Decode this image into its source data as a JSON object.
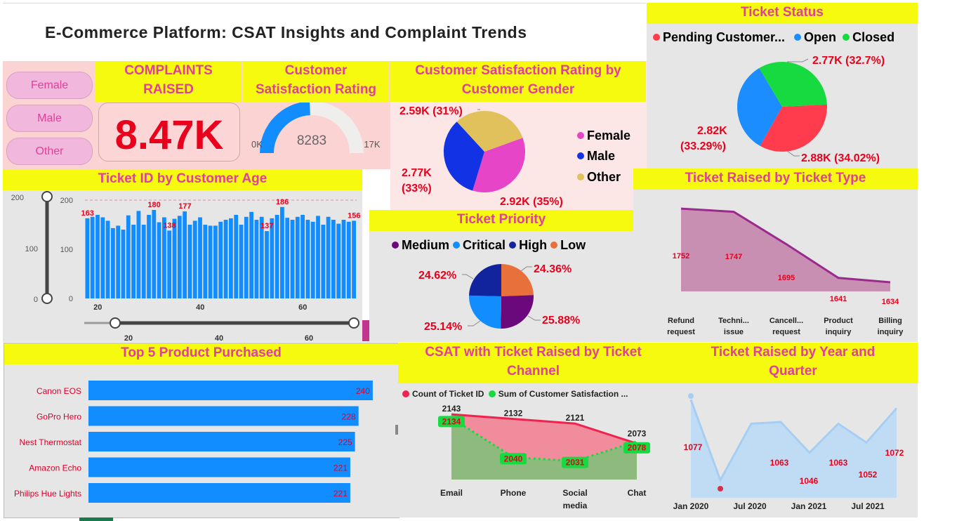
{
  "header": {
    "title": "E-Commerce Platform: CSAT Insights and Complaint Trends"
  },
  "gender_slicer": {
    "items": [
      "Female",
      "Male",
      "Other"
    ]
  },
  "complaints": {
    "title_line1": "COMPLAINTS",
    "title_line2": "RAISED",
    "value": "8.47K"
  },
  "csat_gauge": {
    "title_line1": "Customer",
    "title_line2": "Satisfaction Rating",
    "value": "8283",
    "min": "0K",
    "max": "17K",
    "fraction": 0.487
  },
  "colors": {
    "yellow": "#f5fa0e",
    "magenta_title": "#e0409a",
    "red_value": "#e8001c",
    "blue_bar": "#118dff"
  },
  "gender_pie": {
    "title_line1": "Customer Satisfaction Rating by",
    "title_line2": "Customer Gender",
    "legend": [
      "Female",
      "Male",
      "Other"
    ],
    "labels": [
      "2.92K (35%)",
      "2.77K",
      "(33%)",
      "2.59K (31%)"
    ]
  },
  "age_chart": {
    "title": "Ticket ID by Customer Age",
    "slider_ticks": [
      "200",
      "100",
      "0"
    ],
    "h_slider_ticks": [
      "20",
      "40",
      "60"
    ]
  },
  "ticket_status": {
    "title": "Ticket Status",
    "legend": [
      "Pending Customer...",
      "Open",
      "Closed"
    ],
    "labels": [
      "2.77K (32.7%)",
      "2.82K",
      "(33.29%)",
      "2.88K (34.02%)"
    ]
  },
  "ticket_priority": {
    "title": "Ticket Priority",
    "legend": [
      "Medium",
      "Critical",
      "High",
      "Low"
    ],
    "labels": [
      "24.36%",
      "25.88%",
      "25.14%",
      "24.62%"
    ]
  },
  "ticket_type": {
    "title": "Ticket Raised by Ticket Type",
    "categories": [
      [
        "Refund",
        "request"
      ],
      [
        "Techni...",
        "issue"
      ],
      [
        "Cancell...",
        "request"
      ],
      [
        "Product",
        "inquiry"
      ],
      [
        "Billing",
        "inquiry"
      ]
    ]
  },
  "top_products": {
    "title": "Top 5 Product Purchased"
  },
  "csat_channel": {
    "title_line1": "CSAT with Ticket Raised by Ticket",
    "title_line2": "Channel",
    "legend": [
      "Count of Ticket ID",
      "Sum of Customer Satisfaction ..."
    ],
    "categories": [
      [
        "Email"
      ],
      [
        "Phone"
      ],
      [
        "Social",
        "media"
      ],
      [
        "Chat"
      ]
    ]
  },
  "year_quarter": {
    "title_line1": "Ticket Raised by Year and",
    "title_line2": "Quarter",
    "x_ticks": [
      "Jan 2020",
      "Jul 2020",
      "Jan 2021",
      "Jul 2021"
    ]
  },
  "chart_data": [
    {
      "type": "bar",
      "title": "Ticket ID by Customer Age",
      "x": [
        18,
        19,
        20,
        21,
        22,
        23,
        24,
        25,
        26,
        27,
        28,
        29,
        30,
        31,
        32,
        33,
        34,
        35,
        36,
        37,
        38,
        39,
        40,
        41,
        42,
        43,
        44,
        45,
        46,
        47,
        48,
        49,
        50,
        51,
        52,
        53,
        54,
        55,
        56,
        57,
        58,
        59,
        60,
        61,
        62,
        63,
        64,
        65,
        66,
        67,
        68,
        69,
        70
      ],
      "values": [
        163,
        166,
        170,
        165,
        158,
        143,
        148,
        140,
        169,
        150,
        178,
        150,
        170,
        180,
        155,
        165,
        138,
        162,
        168,
        177,
        150,
        158,
        165,
        150,
        148,
        148,
        156,
        160,
        163,
        170,
        150,
        166,
        176,
        160,
        166,
        137,
        163,
        170,
        186,
        164,
        160,
        166,
        170,
        160,
        156,
        168,
        150,
        166,
        160,
        152,
        160,
        156,
        158
      ],
      "labels": [
        "163",
        "180",
        "138",
        "177",
        "137",
        "186",
        "156"
      ],
      "ylim": [
        0,
        200
      ],
      "y_ticks": [
        "200",
        "100",
        "0"
      ],
      "x_ticks": [
        "20",
        "40",
        "60"
      ]
    },
    {
      "type": "pie",
      "title": "Customer Satisfaction Rating by Customer Gender",
      "categories": [
        "Female",
        "Male",
        "Other"
      ],
      "values": [
        2920,
        2770,
        2590
      ],
      "colors": [
        "#e645c8",
        "#1233e3",
        "#e1c15c"
      ]
    },
    {
      "type": "pie",
      "title": "Ticket Status",
      "categories": [
        "Pending Customer...",
        "Open",
        "Closed"
      ],
      "values": [
        2880,
        2820,
        2770
      ],
      "colors": [
        "#ff3b4e",
        "#1b8dff",
        "#17d940"
      ]
    },
    {
      "type": "pie",
      "title": "Ticket Priority",
      "categories": [
        "Low",
        "High",
        "Critical",
        "Medium"
      ],
      "values": [
        24.36,
        25.88,
        25.14,
        24.62
      ],
      "colors": [
        "#e8703a",
        "#6b087c",
        "#118dff",
        "#12239e"
      ]
    },
    {
      "type": "area",
      "title": "Ticket Raised by Ticket Type",
      "categories": [
        "Refund request",
        "Techni... issue",
        "Cancell... request",
        "Product inquiry",
        "Billing inquiry"
      ],
      "values": [
        1752,
        1747,
        1695,
        1641,
        1634
      ],
      "labels": [
        "1752",
        "1747",
        "1695",
        "1641",
        "1634"
      ]
    },
    {
      "type": "bar",
      "title": "Top 5 Product Purchased",
      "categories": [
        "Canon EOS",
        "GoPro Hero",
        "Nest Thermostat",
        "Amazon Echo",
        "Philips Hue Lights"
      ],
      "values": [
        240,
        228,
        225,
        221,
        221
      ],
      "labels": [
        "240",
        "228",
        "225",
        "221",
        "221"
      ]
    },
    {
      "type": "area",
      "title": "CSAT with Ticket Raised by Ticket Channel",
      "categories": [
        "Email",
        "Phone",
        "Social media",
        "Chat"
      ],
      "series": [
        {
          "name": "Count of Ticket ID",
          "values": [
            2143,
            2132,
            2121,
            2073
          ],
          "labels": [
            "2143",
            "2132",
            "2121",
            "2073"
          ]
        },
        {
          "name": "Sum of Customer Satisfaction ...",
          "values": [
            2134,
            2040,
            2031,
            2078
          ],
          "labels": [
            "2134",
            "2040",
            "2031",
            "2078"
          ]
        }
      ]
    },
    {
      "type": "area",
      "title": "Ticket Raised by Year and Quarter",
      "x": [
        "Q1 2020",
        "Q2 2020",
        "Q3 2020",
        "Q4 2020",
        "Q1 2021",
        "Q2 2021",
        "Q3 2021",
        "Q4 2021"
      ],
      "values": [
        1077,
        1030,
        1063,
        1064,
        1046,
        1063,
        1052,
        1072
      ],
      "labels": [
        "1077",
        "1063",
        "1046",
        "1063",
        "1052",
        "1072"
      ],
      "x_ticks": [
        "Jan 2020",
        "Jul 2020",
        "Jan 2021",
        "Jul 2021"
      ]
    }
  ]
}
